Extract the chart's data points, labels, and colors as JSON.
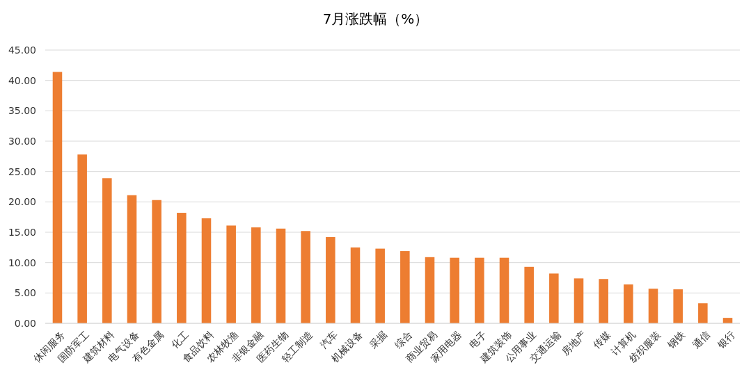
{
  "chart_data": {
    "type": "bar",
    "title": "7月涨跌幅（%）",
    "categories": [
      "休闲服务",
      "国防军工",
      "建筑材料",
      "电气设备",
      "有色金属",
      "化工",
      "食品饮料",
      "农林牧渔",
      "非银金融",
      "医药生物",
      "轻工制造",
      "汽车",
      "机械设备",
      "采掘",
      "综合",
      "商业贸易",
      "家用电器",
      "电子",
      "建筑装饰",
      "公用事业",
      "交通运输",
      "房地产",
      "传媒",
      "计算机",
      "纺织服装",
      "钢铁",
      "通信",
      "银行"
    ],
    "values": [
      41.4,
      27.8,
      23.9,
      21.1,
      20.3,
      18.2,
      17.3,
      16.1,
      15.8,
      15.6,
      15.2,
      14.2,
      12.5,
      12.3,
      11.9,
      10.9,
      10.8,
      10.8,
      10.8,
      9.3,
      8.2,
      7.4,
      7.3,
      6.4,
      5.7,
      5.6,
      3.3,
      0.9
    ],
    "color": "#ed7d31",
    "ylim": [
      0,
      45
    ],
    "yticks": [
      {
        "value": 0,
        "label": "0.00"
      },
      {
        "value": 5,
        "label": "5.00"
      },
      {
        "value": 10,
        "label": "10.00"
      },
      {
        "value": 15,
        "label": "15.00"
      },
      {
        "value": 20,
        "label": "20.00"
      },
      {
        "value": 25,
        "label": "25.00"
      },
      {
        "value": 30,
        "label": "30.00"
      },
      {
        "value": 35,
        "label": "35.00"
      },
      {
        "value": 40,
        "label": "40.00"
      },
      {
        "value": 45,
        "label": "45.00"
      }
    ],
    "grid": true
  }
}
